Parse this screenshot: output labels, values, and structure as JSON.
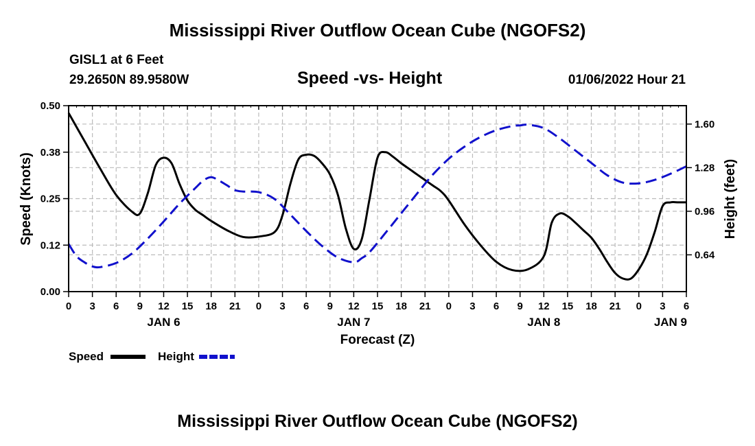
{
  "page": {
    "title": "Mississippi River Outflow Ocean Cube (NGOFS2)",
    "footer_title": "Mississippi River Outflow Ocean Cube (NGOFS2)"
  },
  "header": {
    "station": "GISL1 at 6 Feet",
    "coords": "29.2650N  89.9580W",
    "subtitle": "Speed -vs- Height",
    "datetime": "01/06/2022 Hour 21"
  },
  "legend": {
    "speed_label": "Speed",
    "height_label": "Height"
  },
  "colors": {
    "speed": "#000000",
    "height": "#1111cc",
    "grid": "#bbbbbb"
  },
  "chart_data": {
    "type": "line",
    "title": "Speed -vs- Height",
    "xlabel": "Forecast (Z)",
    "ylabel": "Speed (Knots)",
    "y2label": "Height (feet)",
    "xlim": [
      0,
      78
    ],
    "ylim": [
      0,
      0.5
    ],
    "y2lim": [
      0.37,
      1.735
    ],
    "grid": true,
    "x_ticks": [
      0,
      3,
      6,
      9,
      12,
      15,
      18,
      21,
      24,
      27,
      30,
      33,
      36,
      39,
      42,
      45,
      48,
      51,
      54,
      57,
      60,
      63,
      66,
      69,
      72,
      75,
      78
    ],
    "x_tick_labels": [
      "0",
      "3",
      "6",
      "9",
      "12",
      "15",
      "18",
      "21",
      "0",
      "3",
      "6",
      "9",
      "12",
      "15",
      "18",
      "21",
      "0",
      "3",
      "6",
      "9",
      "12",
      "15",
      "18",
      "21",
      "0",
      "3",
      "6"
    ],
    "date_labels": [
      {
        "x": 12,
        "label": "JAN 6"
      },
      {
        "x": 36,
        "label": "JAN 7"
      },
      {
        "x": 60,
        "label": "JAN 8"
      },
      {
        "x": 76,
        "label": "JAN 9"
      }
    ],
    "y_ticks": [
      0.0,
      0.125,
      0.25,
      0.375,
      0.5
    ],
    "y_tick_labels": [
      "0.00",
      "0.12",
      "0.25",
      "0.38",
      "0.50"
    ],
    "y2_ticks": [
      0.64,
      0.96,
      1.28,
      1.6
    ],
    "y2_tick_labels": [
      "0.64",
      "0.96",
      "1.28",
      "1.60"
    ],
    "series": [
      {
        "name": "Speed",
        "axis": "left",
        "style": "solid",
        "x": [
          0,
          2,
          4,
          6,
          8,
          9,
          10,
          11,
          12,
          13,
          14,
          15,
          16,
          17,
          18,
          20,
          22,
          24,
          26,
          27,
          28,
          29,
          30,
          31,
          32,
          33,
          34,
          35,
          36,
          37,
          38,
          39,
          40,
          41,
          42,
          43,
          44,
          45,
          46,
          47,
          48,
          50,
          52,
          54,
          56,
          58,
          60,
          61,
          62,
          63,
          64,
          65,
          66,
          67,
          68,
          69,
          70,
          71,
          72,
          73,
          74,
          75,
          76,
          77,
          78
        ],
        "values": [
          0.48,
          0.405,
          0.33,
          0.26,
          0.215,
          0.21,
          0.265,
          0.34,
          0.36,
          0.345,
          0.29,
          0.245,
          0.22,
          0.205,
          0.19,
          0.165,
          0.147,
          0.148,
          0.16,
          0.205,
          0.29,
          0.355,
          0.368,
          0.365,
          0.345,
          0.315,
          0.26,
          0.17,
          0.115,
          0.14,
          0.25,
          0.36,
          0.375,
          0.362,
          0.345,
          0.33,
          0.315,
          0.3,
          0.285,
          0.27,
          0.245,
          0.18,
          0.125,
          0.08,
          0.058,
          0.06,
          0.095,
          0.185,
          0.21,
          0.203,
          0.185,
          0.165,
          0.145,
          0.115,
          0.08,
          0.05,
          0.035,
          0.035,
          0.06,
          0.1,
          0.16,
          0.23,
          0.24,
          0.24,
          0.24
        ]
      },
      {
        "name": "Height",
        "axis": "right",
        "style": "dashed",
        "x": [
          0,
          1,
          2,
          3,
          4,
          6,
          8,
          10,
          12,
          14,
          16,
          17,
          18,
          19,
          20,
          21,
          22,
          24,
          26,
          28,
          30,
          32,
          34,
          36,
          37,
          38,
          40,
          42,
          44,
          46,
          48,
          50,
          52,
          54,
          56,
          57,
          58,
          60,
          62,
          64,
          66,
          68,
          70,
          72,
          74,
          76,
          78
        ],
        "values": [
          0.72,
          0.63,
          0.585,
          0.555,
          0.55,
          0.58,
          0.65,
          0.76,
          0.885,
          1.015,
          1.13,
          1.185,
          1.21,
          1.185,
          1.15,
          1.115,
          1.105,
          1.1,
          1.05,
          0.935,
          0.815,
          0.705,
          0.62,
          0.585,
          0.615,
          0.66,
          0.8,
          0.945,
          1.09,
          1.23,
          1.345,
          1.435,
          1.505,
          1.555,
          1.585,
          1.59,
          1.595,
          1.57,
          1.495,
          1.405,
          1.315,
          1.225,
          1.17,
          1.165,
          1.19,
          1.235,
          1.29
        ]
      }
    ]
  }
}
